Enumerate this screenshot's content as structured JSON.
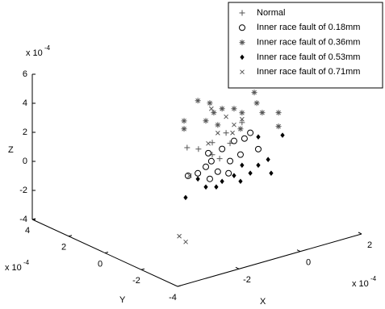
{
  "chart_data": {
    "type": "scatter3d",
    "xlabel": "X",
    "ylabel": "Y",
    "zlabel": "Z",
    "multiplier": {
      "base": "x 10",
      "exponent": "-4"
    },
    "xlim": [
      -4,
      2
    ],
    "xticks": [
      -2,
      0,
      2
    ],
    "ylim": [
      -4,
      4
    ],
    "yticks": [
      4,
      2,
      0,
      -2,
      -4
    ],
    "zlim": [
      -4,
      6
    ],
    "zticks": [
      -4,
      -2,
      0,
      2,
      4,
      6
    ],
    "legend": "upper right",
    "series": [
      {
        "name": "Normal",
        "marker": "plus",
        "color": "#555555",
        "x": [
          -1.32,
          -0.95,
          -0.5,
          -0.05,
          0.08,
          0.47,
          -0.26,
          -0.5
        ],
        "y": [
          0,
          0,
          0,
          0,
          0,
          0,
          0,
          0
        ],
        "z": [
          1.64,
          1.32,
          1.49,
          1.89,
          1.09,
          2.29,
          0.24,
          0.66
        ]
      },
      {
        "name": "Inner race fault of 0.18mm",
        "marker": "circle",
        "color": "#000000",
        "x": [
          -0.63,
          -0.53,
          -0.32,
          0.08,
          0.21,
          0.55,
          0.42,
          0.74,
          -1.29,
          -0.97,
          -0.71,
          -0.18,
          1.0,
          0.03,
          -0.58
        ],
        "y": [
          0,
          0,
          0,
          0,
          0,
          0,
          0,
          0,
          0,
          0,
          0,
          0,
          0,
          0,
          0
        ],
        "z": [
          0.84,
          0.23,
          -0.62,
          -0.13,
          1.18,
          1.14,
          0.11,
          1.42,
          -0.32,
          -0.34,
          -0.05,
          0.86,
          0.14,
          -0.94,
          -0.96
        ]
      },
      {
        "name": "Inner race fault of 0.36mm",
        "marker": "star",
        "color": "#555555",
        "x": [
          -1.42,
          -1.42,
          -0.97,
          -0.58,
          -0.45,
          -0.18,
          0.21,
          0.47,
          0.87,
          0.95,
          1.13,
          1.66,
          1.66,
          0.42,
          -0.32,
          -0.71
        ],
        "y": [
          0,
          0,
          0,
          0,
          0,
          0,
          0,
          0,
          0,
          0,
          0,
          0,
          0,
          0,
          0,
          0
        ],
        "z": [
          3.54,
          2.99,
          4.66,
          4.26,
          3.52,
          3.63,
          3.4,
          2.96,
          4.12,
          3.34,
          2.57,
          2.25,
          1.31,
          1.88,
          2.6,
          3.12
        ]
      },
      {
        "name": "Inner race fault of 0.53mm",
        "marker": "diamond",
        "color": "#000000",
        "x": [
          -1.37,
          -0.71,
          -0.37,
          -0.18,
          0.21,
          0.42,
          0.74,
          1.0,
          1.32,
          1.42,
          1.0,
          1.79,
          -0.97,
          0.47
        ],
        "y": [
          0,
          0,
          0,
          0,
          0,
          0,
          0,
          0,
          0,
          0,
          0,
          0,
          0,
          0
        ],
        "z": [
          -1.77,
          -1.44,
          -1.64,
          -1.37,
          -1.21,
          -1.73,
          -1.36,
          -0.97,
          -0.77,
          -1.77,
          0.98,
          0.62,
          -0.73,
          -0.65
        ]
      },
      {
        "name": "Inner race fault of 0.71mm",
        "marker": "cross",
        "color": "#555555",
        "x": [
          -2.76,
          -2.55,
          -1.24,
          -0.63,
          -0.05,
          0.21,
          0.47,
          -0.32,
          -0.53,
          0.16
        ],
        "y": [
          -2,
          -2,
          0,
          0,
          0,
          0,
          0,
          0,
          0,
          0
        ],
        "z": [
          -2.44,
          -2.96,
          -0.34,
          1.51,
          3.0,
          2.29,
          2.52,
          2.04,
          3.84,
          1.76
        ]
      }
    ]
  }
}
